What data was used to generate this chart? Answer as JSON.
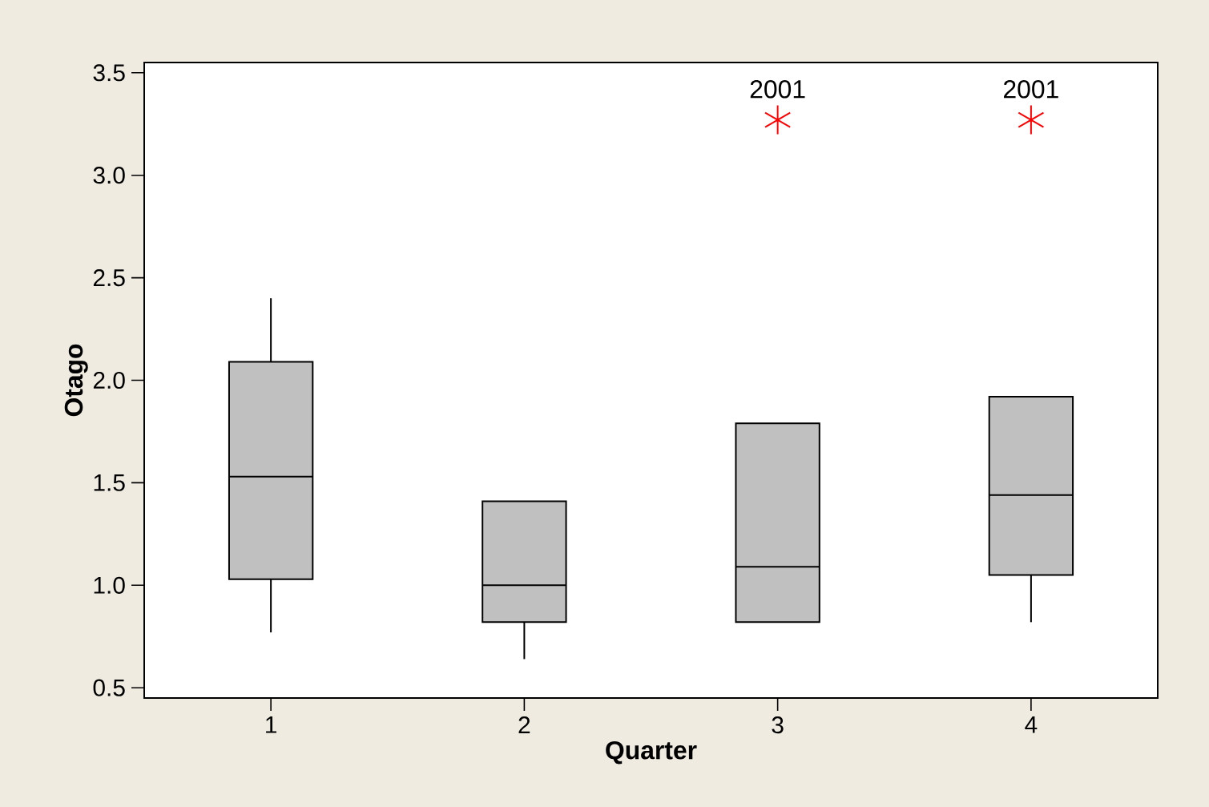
{
  "chart_data": {
    "type": "box",
    "xlabel": "Quarter",
    "ylabel": "Otago",
    "categories": [
      "1",
      "2",
      "3",
      "4"
    ],
    "series": [
      {
        "color": "#c0c0c0",
        "boxes": [
          {
            "low": 0.77,
            "q1": 1.03,
            "median": 1.53,
            "q3": 2.09,
            "high": 2.4
          },
          {
            "low": 0.64,
            "q1": 0.82,
            "median": 1.0,
            "q3": 1.41,
            "high": 1.41
          },
          {
            "low": 0.82,
            "q1": 0.82,
            "median": 1.09,
            "q3": 1.79,
            "high": 1.79,
            "outliers": [
              3.27
            ]
          },
          {
            "low": 0.82,
            "q1": 1.05,
            "median": 1.44,
            "q3": 1.92,
            "high": 1.92,
            "outliers": [
              3.27
            ]
          }
        ]
      }
    ],
    "ylim": [
      0.45,
      3.55
    ],
    "yticks": [
      0.5,
      {
        "value": 1,
        "label": "1.0"
      },
      1.5,
      {
        "value": 2,
        "label": "2.0"
      },
      2.5,
      {
        "value": 3,
        "label": "3.0"
      },
      3.5
    ],
    "grid": false,
    "marker": "star",
    "annotations": [
      "2001",
      "2001"
    ]
  }
}
